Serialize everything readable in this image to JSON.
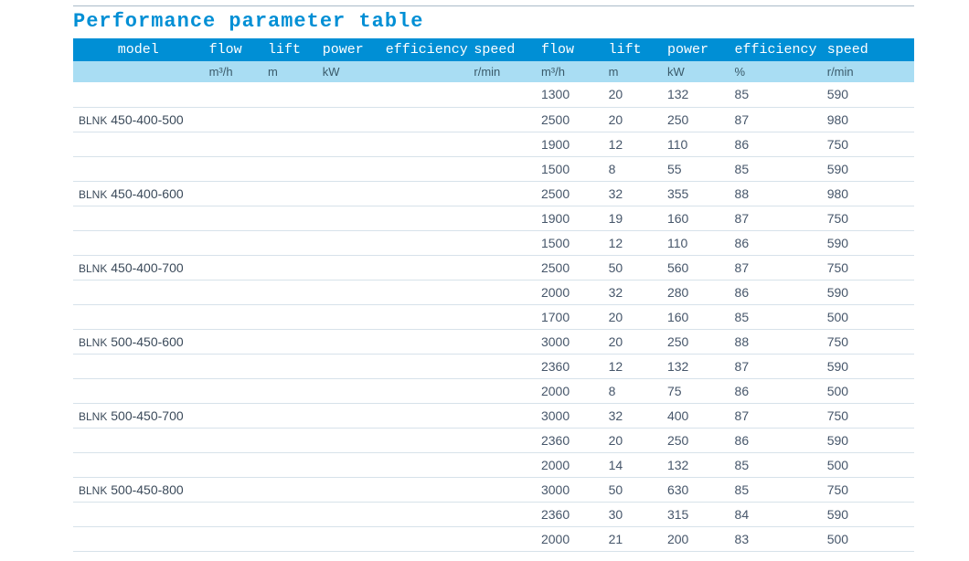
{
  "title": "Performance parameter table",
  "colors": {
    "accent": "#008fd5",
    "unitsBg": "#a9ddf3",
    "rowBorder": "#d7e2ea",
    "text": "#46566a"
  },
  "columns": {
    "headers": [
      "model",
      "flow",
      "lift",
      "power",
      "efficiency",
      "speed",
      "flow",
      "lift",
      "power",
      "efficiency",
      "speed"
    ],
    "units": [
      "",
      "m³/h",
      "m",
      "kW",
      "",
      "r/min",
      "m³/h",
      "m",
      "kW",
      "%",
      "r/min"
    ]
  },
  "rows": [
    {
      "model": "",
      "r": [
        "",
        "",
        "",
        "",
        "",
        "1300",
        "20",
        "132",
        "85",
        "590"
      ]
    },
    {
      "modelPrefix": "BLNK",
      "modelCode": "450-400-500",
      "r": [
        "",
        "",
        "",
        "",
        "",
        "2500",
        "20",
        "250",
        "87",
        "980"
      ]
    },
    {
      "model": "",
      "r": [
        "",
        "",
        "",
        "",
        "",
        "1900",
        "12",
        "110",
        "86",
        "750"
      ]
    },
    {
      "model": "",
      "r": [
        "",
        "",
        "",
        "",
        "",
        "1500",
        "8",
        "55",
        "85",
        "590"
      ]
    },
    {
      "modelPrefix": "BLNK",
      "modelCode": "450-400-600",
      "r": [
        "",
        "",
        "",
        "",
        "",
        "2500",
        "32",
        "355",
        "88",
        "980"
      ]
    },
    {
      "model": "",
      "r": [
        "",
        "",
        "",
        "",
        "",
        "1900",
        "19",
        "160",
        "87",
        "750"
      ]
    },
    {
      "model": "",
      "r": [
        "",
        "",
        "",
        "",
        "",
        "1500",
        "12",
        "110",
        "86",
        "590"
      ]
    },
    {
      "modelPrefix": "BLNK",
      "modelCode": "450-400-700",
      "r": [
        "",
        "",
        "",
        "",
        "",
        "2500",
        "50",
        "560",
        "87",
        "750"
      ]
    },
    {
      "model": "",
      "r": [
        "",
        "",
        "",
        "",
        "",
        "2000",
        "32",
        "280",
        "86",
        "590"
      ]
    },
    {
      "model": "",
      "r": [
        "",
        "",
        "",
        "",
        "",
        "1700",
        "20",
        "160",
        "85",
        "500"
      ]
    },
    {
      "modelPrefix": "BLNK",
      "modelCode": "500-450-600",
      "r": [
        "",
        "",
        "",
        "",
        "",
        "3000",
        "20",
        "250",
        "88",
        "750"
      ]
    },
    {
      "model": "",
      "r": [
        "",
        "",
        "",
        "",
        "",
        "2360",
        "12",
        "132",
        "87",
        "590"
      ]
    },
    {
      "model": "",
      "r": [
        "",
        "",
        "",
        "",
        "",
        "2000",
        "8",
        "75",
        "86",
        "500"
      ]
    },
    {
      "modelPrefix": "BLNK",
      "modelCode": "500-450-700",
      "r": [
        "",
        "",
        "",
        "",
        "",
        "3000",
        "32",
        "400",
        "87",
        "750"
      ]
    },
    {
      "model": "",
      "r": [
        "",
        "",
        "",
        "",
        "",
        "2360",
        "20",
        "250",
        "86",
        "590"
      ]
    },
    {
      "model": "",
      "r": [
        "",
        "",
        "",
        "",
        "",
        "2000",
        "14",
        "132",
        "85",
        "500"
      ]
    },
    {
      "modelPrefix": "BLNK",
      "modelCode": "500-450-800",
      "r": [
        "",
        "",
        "",
        "",
        "",
        "3000",
        "50",
        "630",
        "85",
        "750"
      ]
    },
    {
      "model": "",
      "r": [
        "",
        "",
        "",
        "",
        "",
        "2360",
        "30",
        "315",
        "84",
        "590"
      ]
    },
    {
      "model": "",
      "r": [
        "",
        "",
        "",
        "",
        "",
        "2000",
        "21",
        "200",
        "83",
        "500"
      ]
    }
  ]
}
